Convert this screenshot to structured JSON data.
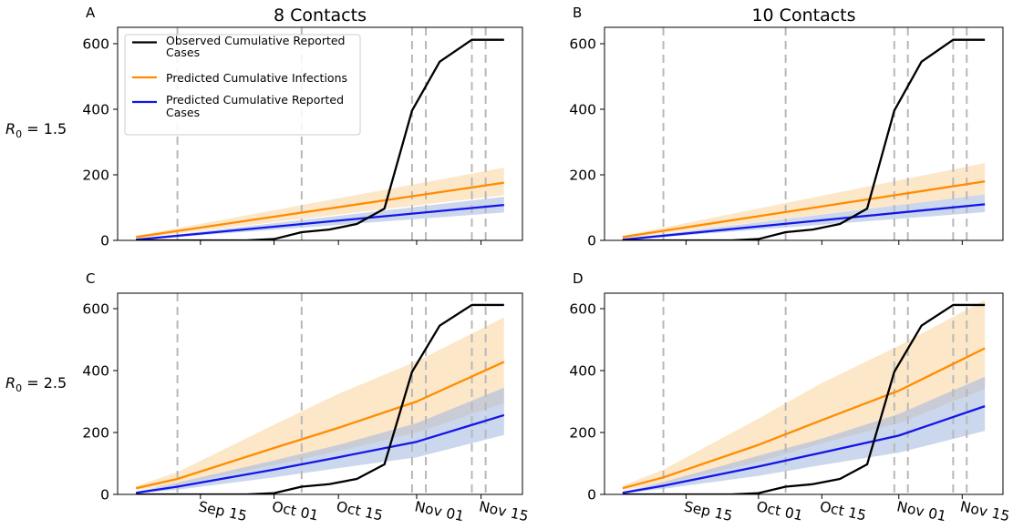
{
  "colors": {
    "observed": "#000000",
    "infections": "#ff8c00",
    "reported": "#1515e8",
    "infections_band": "#fbd9a8",
    "reported_band": "#9fb6df",
    "event_lines": "#b8b8b8"
  },
  "legend": {
    "placement": "upper-left (panel A)",
    "items": [
      {
        "lines": [
          "Observed Cumulative Reported",
          "Cases"
        ],
        "color": "#000000"
      },
      {
        "lines": [
          "Predicted Cumulative Infections"
        ],
        "color": "#ff8c00"
      },
      {
        "lines": [
          "Predicted Cumulative Reported",
          "Cases"
        ],
        "color": "#1515e8"
      }
    ]
  },
  "row_labels": [
    {
      "prefix": "R",
      "sub": "0",
      "suffix": " = 1.5"
    },
    {
      "prefix": "R",
      "sub": "0",
      "suffix": " = 2.5"
    }
  ],
  "chart_data": [
    {
      "panel": "A",
      "title": "8 Contacts",
      "type": "line",
      "x_tick_labels": [],
      "y_ticks": [
        0,
        200,
        400,
        600
      ],
      "ylim": [
        0,
        650
      ],
      "grid": false,
      "event_dates": [
        "2020-09-10",
        "2020-10-07",
        "2020-10-31",
        "2020-11-03",
        "2020-11-13",
        "2020-11-16"
      ],
      "series": [
        {
          "name": "Observed Cumulative Reported Cases",
          "x": [
            "2020-09-01",
            "2020-09-10",
            "2020-09-20",
            "2020-09-25",
            "2020-10-01",
            "2020-10-07",
            "2020-10-13",
            "2020-10-19",
            "2020-10-25",
            "2020-10-31",
            "2020-11-06",
            "2020-11-13",
            "2020-11-20"
          ],
          "y": [
            0,
            0,
            0,
            0,
            4,
            25,
            33,
            50,
            97,
            396,
            545,
            612,
            612
          ]
        },
        {
          "name": "Predicted Cumulative Infections",
          "x": [
            "2020-09-01",
            "2020-11-20"
          ],
          "y": [
            10,
            176
          ],
          "band_low": [
            6,
            138
          ],
          "band_high": [
            14,
            222
          ]
        },
        {
          "name": "Predicted Cumulative Reported Cases",
          "x": [
            "2020-09-01",
            "2020-11-20"
          ],
          "y": [
            2,
            108
          ],
          "band_low": [
            1,
            85
          ],
          "band_high": [
            4,
            133
          ]
        }
      ]
    },
    {
      "panel": "B",
      "title": "10 Contacts",
      "type": "line",
      "x_tick_labels": [],
      "y_ticks": [
        0,
        200,
        400,
        600
      ],
      "ylim": [
        0,
        650
      ],
      "grid": false,
      "event_dates": [
        "2020-09-10",
        "2020-10-07",
        "2020-10-31",
        "2020-11-03",
        "2020-11-13",
        "2020-11-16"
      ],
      "series": [
        {
          "name": "Observed Cumulative Reported Cases",
          "x": [
            "2020-09-01",
            "2020-09-10",
            "2020-09-20",
            "2020-09-25",
            "2020-10-01",
            "2020-10-07",
            "2020-10-13",
            "2020-10-19",
            "2020-10-25",
            "2020-10-31",
            "2020-11-06",
            "2020-11-13",
            "2020-11-20"
          ],
          "y": [
            0,
            0,
            0,
            0,
            4,
            25,
            33,
            50,
            97,
            396,
            545,
            612,
            612
          ]
        },
        {
          "name": "Predicted Cumulative Infections",
          "x": [
            "2020-09-01",
            "2020-11-20"
          ],
          "y": [
            10,
            180
          ],
          "band_low": [
            6,
            140
          ],
          "band_high": [
            14,
            236
          ]
        },
        {
          "name": "Predicted Cumulative Reported Cases",
          "x": [
            "2020-09-01",
            "2020-11-20"
          ],
          "y": [
            2,
            110
          ],
          "band_low": [
            1,
            86
          ],
          "band_high": [
            4,
            140
          ]
        }
      ]
    },
    {
      "panel": "C",
      "title": "",
      "type": "line",
      "x_tick_labels": [
        "Sep 15",
        "Oct 01",
        "Oct 15",
        "Nov 01",
        "Nov 15"
      ],
      "y_ticks": [
        0,
        200,
        400,
        600
      ],
      "ylim": [
        0,
        650
      ],
      "grid": false,
      "event_dates": [
        "2020-09-10",
        "2020-10-07",
        "2020-10-31",
        "2020-11-03",
        "2020-11-13",
        "2020-11-16"
      ],
      "series": [
        {
          "name": "Observed Cumulative Reported Cases",
          "x": [
            "2020-09-01",
            "2020-09-10",
            "2020-09-20",
            "2020-09-25",
            "2020-10-01",
            "2020-10-07",
            "2020-10-13",
            "2020-10-19",
            "2020-10-25",
            "2020-10-31",
            "2020-11-06",
            "2020-11-13",
            "2020-11-20"
          ],
          "y": [
            0,
            0,
            0,
            0,
            4,
            25,
            33,
            50,
            97,
            396,
            545,
            612,
            612
          ]
        },
        {
          "name": "Predicted Cumulative Infections",
          "x": [
            "2020-09-01",
            "2020-09-10",
            "2020-10-01",
            "2020-10-15",
            "2020-11-01",
            "2020-11-20"
          ],
          "y": [
            20,
            50,
            150,
            215,
            300,
            428
          ],
          "band_low": [
            14,
            32,
            95,
            140,
            200,
            295
          ],
          "band_high": [
            27,
            72,
            225,
            325,
            430,
            572
          ]
        },
        {
          "name": "Predicted Cumulative Reported Cases",
          "x": [
            "2020-09-01",
            "2020-09-10",
            "2020-10-01",
            "2020-10-15",
            "2020-11-01",
            "2020-11-20"
          ],
          "y": [
            5,
            25,
            80,
            120,
            170,
            256
          ],
          "band_low": [
            3,
            15,
            55,
            85,
            120,
            192
          ],
          "band_high": [
            8,
            38,
            110,
            160,
            230,
            345
          ]
        }
      ]
    },
    {
      "panel": "D",
      "title": "",
      "type": "line",
      "x_tick_labels": [
        "Sep 15",
        "Oct 01",
        "Oct 15",
        "Nov 01",
        "Nov 15"
      ],
      "y_ticks": [
        0,
        200,
        400,
        600
      ],
      "ylim": [
        0,
        650
      ],
      "grid": false,
      "event_dates": [
        "2020-09-10",
        "2020-10-07",
        "2020-10-31",
        "2020-11-03",
        "2020-11-13",
        "2020-11-16"
      ],
      "series": [
        {
          "name": "Observed Cumulative Reported Cases",
          "x": [
            "2020-09-01",
            "2020-09-10",
            "2020-09-20",
            "2020-09-25",
            "2020-10-01",
            "2020-10-07",
            "2020-10-13",
            "2020-10-19",
            "2020-10-25",
            "2020-10-31",
            "2020-11-06",
            "2020-11-13",
            "2020-11-20"
          ],
          "y": [
            0,
            0,
            0,
            0,
            4,
            25,
            33,
            50,
            97,
            396,
            545,
            612,
            612
          ]
        },
        {
          "name": "Predicted Cumulative Infections",
          "x": [
            "2020-09-01",
            "2020-09-10",
            "2020-10-01",
            "2020-10-15",
            "2020-11-01",
            "2020-11-20"
          ],
          "y": [
            20,
            55,
            160,
            240,
            335,
            472
          ],
          "band_low": [
            14,
            35,
            105,
            165,
            230,
            342
          ],
          "band_high": [
            28,
            80,
            245,
            360,
            480,
            628
          ]
        },
        {
          "name": "Predicted Cumulative Reported Cases",
          "x": [
            "2020-09-01",
            "2020-09-10",
            "2020-10-01",
            "2020-10-15",
            "2020-11-01",
            "2020-11-20"
          ],
          "y": [
            5,
            28,
            90,
            135,
            190,
            285
          ],
          "band_low": [
            3,
            18,
            60,
            95,
            135,
            205
          ],
          "band_high": [
            8,
            40,
            125,
            180,
            260,
            380
          ]
        }
      ]
    }
  ]
}
